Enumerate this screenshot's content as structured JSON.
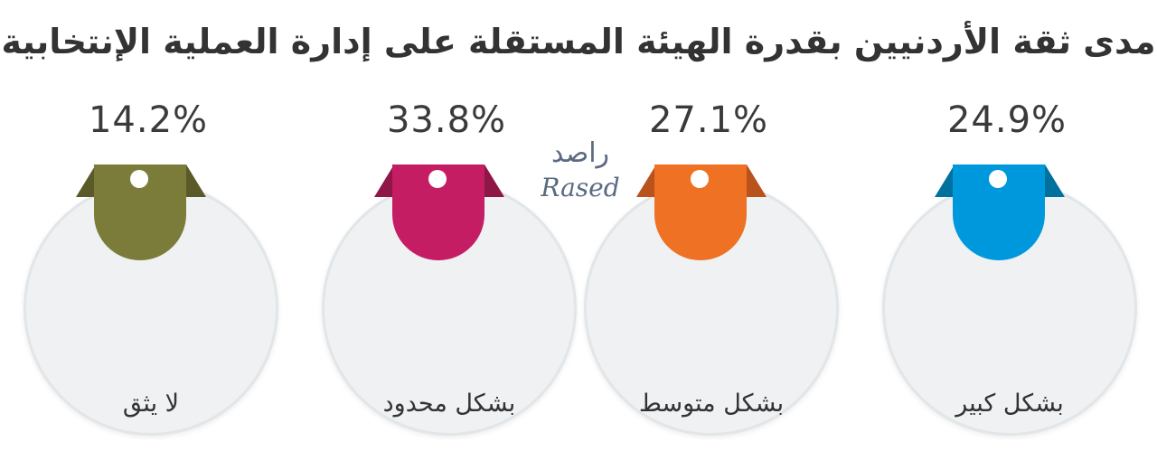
{
  "chart_data": {
    "type": "bar",
    "title": "مدى ثقة الأردنيين بقدرة الهيئة المستقلة على إدارة العملية الإنتخابية",
    "categories": [
      "لا يثق",
      "بشكل محدود",
      "بشكل متوسط",
      "بشكل كبير"
    ],
    "values": [
      14.2,
      33.8,
      27.1,
      24.9
    ],
    "value_labels": [
      "14.2%",
      "33.8%",
      "27.1%",
      "24.9%"
    ],
    "colors": [
      "#7c7c3a",
      "#c51d63",
      "#ee7124",
      "#0098dc"
    ],
    "fold_colors": [
      "#5a5a28",
      "#8e1747",
      "#b9531b",
      "#00719f"
    ],
    "unit": "%"
  },
  "watermark": {
    "arabic": "راصد",
    "latin": "Rased"
  }
}
